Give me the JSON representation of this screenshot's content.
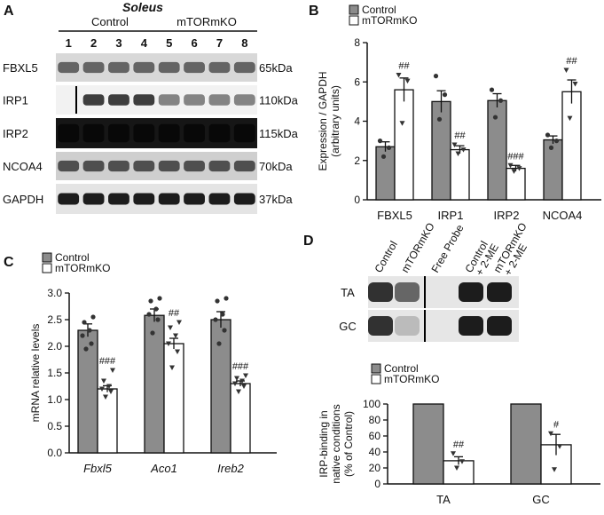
{
  "panels": {
    "A": "A",
    "B": "B",
    "C": "C",
    "D": "D"
  },
  "blot": {
    "title": "Soleus",
    "groups": [
      "Control",
      "mTORmKO"
    ],
    "lanes": [
      "1",
      "2",
      "3",
      "4",
      "5",
      "6",
      "7",
      "8"
    ],
    "rows": [
      {
        "name": "FBXL5",
        "kda": "65kDa"
      },
      {
        "name": "IRP1",
        "kda": "110kDa"
      },
      {
        "name": "IRP2",
        "kda": "115kDa"
      },
      {
        "name": "NCOA4",
        "kda": "70kDa"
      },
      {
        "name": "GAPDH",
        "kda": "37kDa"
      }
    ]
  },
  "gel": {
    "columns": [
      "Control",
      "mTORmKO",
      "Free Probe",
      "Control\n+ 2-ME",
      "mTORmKO\n+ 2-ME"
    ],
    "rows": [
      "TA",
      "GC"
    ]
  },
  "colors": {
    "control": "#8c8c8c",
    "ko": "#ffffff",
    "dot": "#333333"
  },
  "chart_data": [
    {
      "type": "bar",
      "panel": "B",
      "categories": [
        "FBXL5",
        "IRP1",
        "IRP2",
        "NCOA4"
      ],
      "series": [
        {
          "name": "Control",
          "values": [
            2.7,
            5.0,
            5.05,
            3.05
          ],
          "errors": [
            0.25,
            0.55,
            0.35,
            0.2
          ],
          "points": [
            [
              2.2,
              2.65,
              3.0
            ],
            [
              4.1,
              5.35,
              6.3
            ],
            [
              4.2,
              5.05,
              5.6
            ],
            [
              2.65,
              3.0,
              3.3
            ]
          ]
        },
        {
          "name": "mTORmKO",
          "values": [
            5.6,
            2.55,
            1.6,
            5.5
          ],
          "errors": [
            0.6,
            0.2,
            0.15,
            0.6
          ],
          "points": [
            [
              3.9,
              6.05,
              6.35
            ],
            [
              2.35,
              2.55,
              2.8
            ],
            [
              1.45,
              1.6,
              1.75
            ],
            [
              4.15,
              5.9,
              6.6
            ]
          ]
        }
      ],
      "significance": [
        "##",
        "##",
        "###",
        "##"
      ],
      "ylabel": "Expression / GAPDH\n(arbitrary units)",
      "ylim": [
        0,
        8
      ],
      "yticks": [
        "0",
        "2",
        "4",
        "6",
        "8"
      ],
      "legend": "top-left"
    },
    {
      "type": "bar",
      "panel": "C",
      "categories": [
        "Fbxl5",
        "Aco1",
        "Ireb2"
      ],
      "series": [
        {
          "name": "Control",
          "values": [
            2.3,
            2.58,
            2.5
          ],
          "errors": [
            0.12,
            0.12,
            0.15
          ],
          "points": [
            [
              1.95,
              2.05,
              2.2,
              2.3,
              2.45,
              2.55
            ],
            [
              2.25,
              2.5,
              2.6,
              2.7,
              2.85,
              2.9
            ],
            [
              2.05,
              2.3,
              2.5,
              2.6,
              2.85,
              2.9
            ]
          ]
        },
        {
          "name": "mTORmKO",
          "values": [
            1.2,
            2.05,
            1.3
          ],
          "errors": [
            0.06,
            0.1,
            0.05
          ],
          "points": [
            [
              1.05,
              1.15,
              1.2,
              1.25,
              1.35,
              1.55
            ],
            [
              1.6,
              1.9,
              2.05,
              2.2,
              2.35,
              2.45
            ],
            [
              1.15,
              1.25,
              1.3,
              1.35,
              1.4,
              1.45
            ]
          ]
        }
      ],
      "significance": [
        "###",
        "##",
        "###"
      ],
      "ylabel": "mRNA relative levels",
      "ylim": [
        0,
        3.0
      ],
      "yticks": [
        "0.0",
        "0.5",
        "1.0",
        "1.5",
        "2.0",
        "2.5",
        "3.0"
      ],
      "legend": "top-left"
    },
    {
      "type": "bar",
      "panel": "D",
      "categories": [
        "TA",
        "GC"
      ],
      "series": [
        {
          "name": "Control",
          "values": [
            100,
            100
          ],
          "errors": [
            0,
            0
          ],
          "points": [
            [],
            []
          ]
        },
        {
          "name": "mTORmKO",
          "values": [
            29,
            49
          ],
          "errors": [
            5,
            13
          ],
          "points": [
            [
              20,
              28,
              38
            ],
            [
              18,
              47,
              63
            ]
          ]
        }
      ],
      "significance": [
        "##",
        "#"
      ],
      "ylabel": "IRP-binding in\nnative conditions\n(% of Control)",
      "ylim": [
        0,
        100
      ],
      "yticks": [
        "0",
        "20",
        "40",
        "60",
        "80",
        "100"
      ],
      "legend": "top-left"
    }
  ]
}
